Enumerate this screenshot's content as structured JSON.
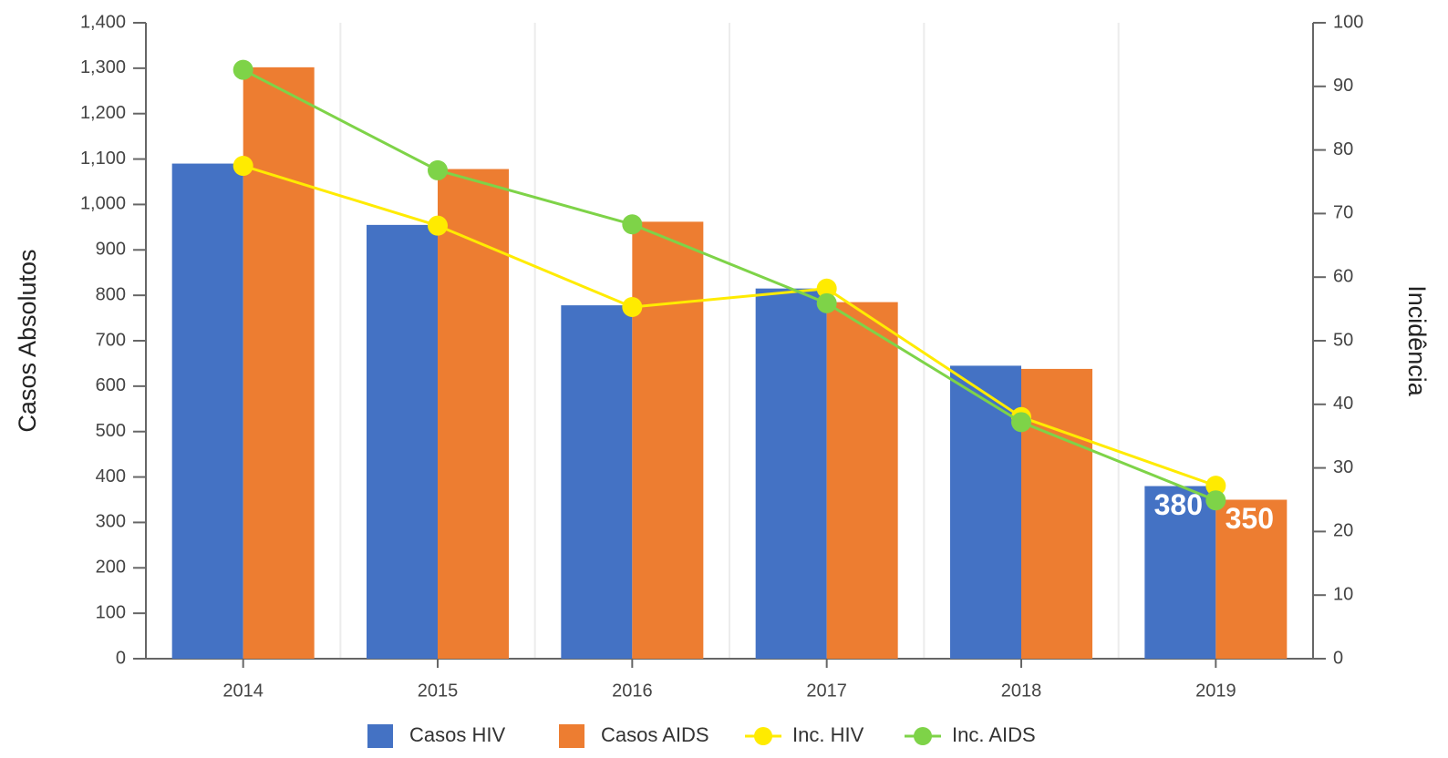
{
  "chart_data": {
    "type": "bar-line",
    "y_label": "Casos Absolutos",
    "y2_label": "Incidência",
    "categories": [
      "2014",
      "2015",
      "2016",
      "2017",
      "2018",
      "2019"
    ],
    "series": [
      {
        "name": "Casos HIV",
        "type": "bar",
        "color": "#4472c4",
        "values": [
          1090,
          955,
          778,
          815,
          645,
          380
        ]
      },
      {
        "name": "Casos AIDS",
        "type": "bar",
        "color": "#ed7d31",
        "values": [
          1302,
          1078,
          962,
          785,
          638,
          350
        ]
      },
      {
        "name": "Inc. HIV",
        "type": "line",
        "axis": "y2",
        "color": "#ffeb00",
        "values": [
          77.5,
          68.1,
          55.3,
          58.2,
          38.0,
          27.2
        ]
      },
      {
        "name": "Inc. AIDS",
        "type": "line",
        "axis": "y2",
        "color": "#7ed348",
        "values": [
          92.6,
          76.8,
          68.3,
          55.9,
          37.2,
          24.9
        ]
      }
    ],
    "data_labels": "last",
    "ylim": [
      0,
      1400
    ],
    "yticks": [
      0,
      100,
      200,
      300,
      400,
      500,
      600,
      700,
      800,
      900,
      {
        "value": 1000,
        "label": "1,000"
      },
      {
        "value": 1100,
        "label": "1,100"
      },
      {
        "value": 1200,
        "label": "1,200"
      },
      {
        "value": 1300,
        "label": "1,300"
      },
      {
        "value": 1400,
        "label": "1,400"
      }
    ],
    "y2lim": [
      0,
      100
    ],
    "y2ticks": [
      0,
      10,
      20,
      30,
      40,
      50,
      60,
      70,
      80,
      90,
      100
    ],
    "grid": "x",
    "legend": "bottom"
  }
}
